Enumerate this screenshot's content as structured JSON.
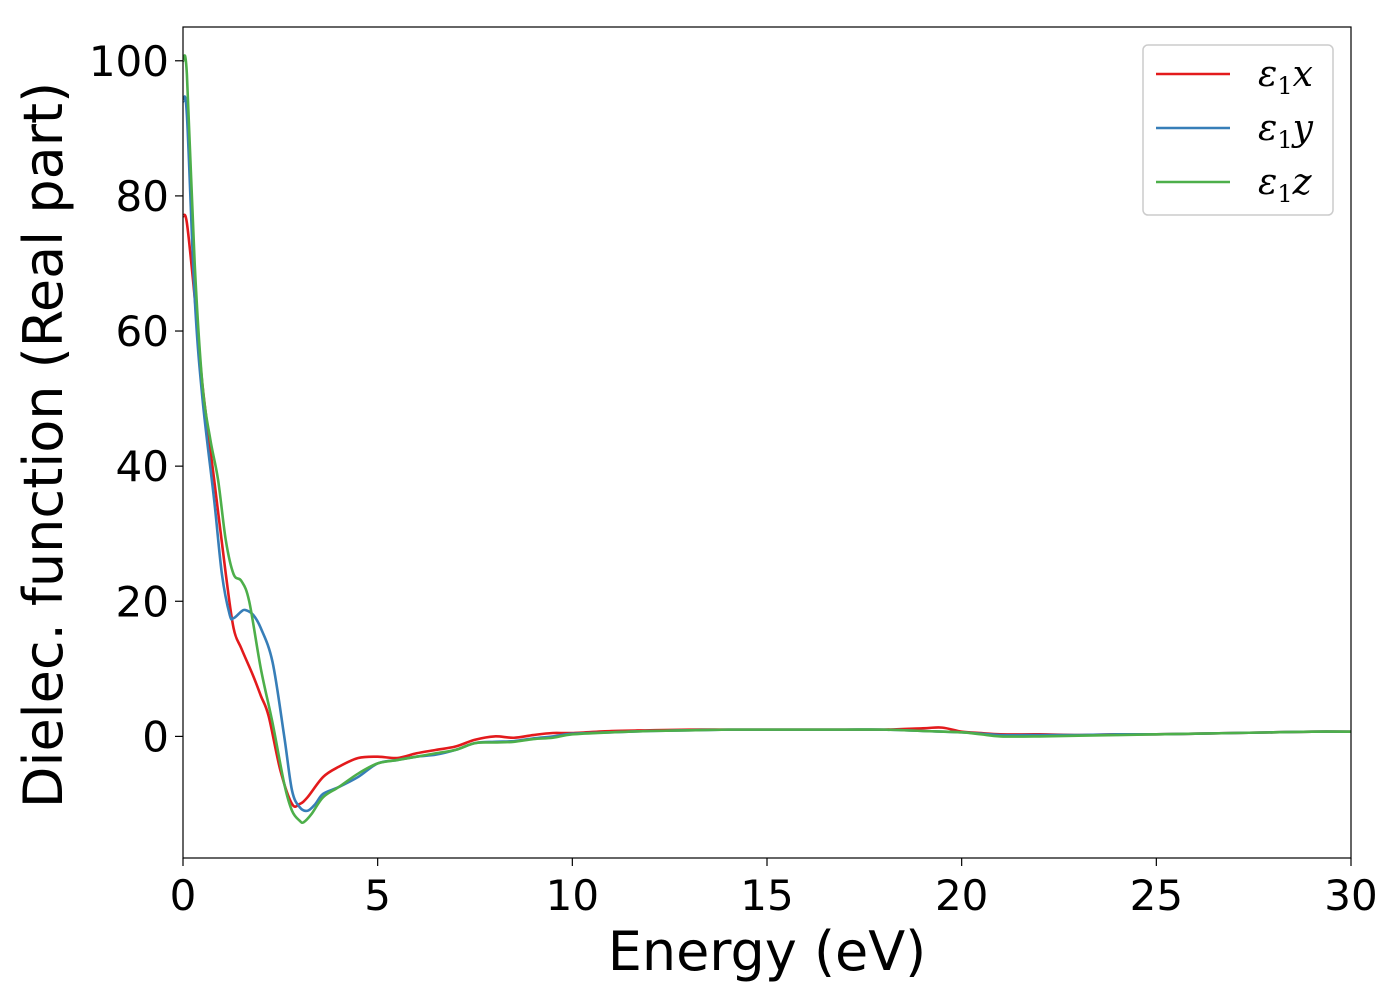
{
  "chart_data": {
    "type": "line",
    "title": "",
    "xlabel": "Energy (eV)",
    "ylabel": "Dielec. function (Real part)",
    "xlim": [
      0,
      30
    ],
    "ylim": [
      -18,
      105
    ],
    "xticks": [
      0,
      5,
      10,
      15,
      20,
      25,
      30
    ],
    "yticks": [
      0,
      20,
      40,
      60,
      80,
      100
    ],
    "xtick_labels": [
      "0",
      "5",
      "10",
      "15",
      "20",
      "25",
      "30"
    ],
    "ytick_labels": [
      "0",
      "20",
      "40",
      "60",
      "80",
      "100"
    ],
    "grid": false,
    "legend_position": "top-right",
    "series": [
      {
        "name": "ε1x",
        "name_parts": {
          "base": "ε",
          "sub": "1",
          "tail": "x"
        },
        "color": "#e31a1c",
        "points": [
          [
            0,
            77
          ],
          [
            0.1,
            76
          ],
          [
            0.3,
            65
          ],
          [
            0.5,
            52
          ],
          [
            0.8,
            38
          ],
          [
            1.1,
            24
          ],
          [
            1.3,
            16
          ],
          [
            1.5,
            13
          ],
          [
            1.8,
            9
          ],
          [
            2.0,
            6
          ],
          [
            2.2,
            3
          ],
          [
            2.5,
            -5
          ],
          [
            2.8,
            -10
          ],
          [
            3.0,
            -10
          ],
          [
            3.2,
            -9
          ],
          [
            3.6,
            -6
          ],
          [
            4.0,
            -4.5
          ],
          [
            4.5,
            -3.2
          ],
          [
            5.0,
            -3
          ],
          [
            5.5,
            -3.2
          ],
          [
            6.0,
            -2.5
          ],
          [
            6.5,
            -2
          ],
          [
            7.0,
            -1.5
          ],
          [
            7.5,
            -0.5
          ],
          [
            8.0,
            0
          ],
          [
            8.5,
            -0.2
          ],
          [
            9.0,
            0.2
          ],
          [
            9.5,
            0.5
          ],
          [
            10,
            0.5
          ],
          [
            11,
            0.8
          ],
          [
            12,
            0.9
          ],
          [
            13,
            1
          ],
          [
            14,
            1
          ],
          [
            15,
            1
          ],
          [
            16,
            1
          ],
          [
            17,
            1
          ],
          [
            18,
            1
          ],
          [
            19,
            1.2
          ],
          [
            19.5,
            1.3
          ],
          [
            20,
            0.7
          ],
          [
            20.5,
            0.5
          ],
          [
            21,
            0.3
          ],
          [
            22,
            0.3
          ],
          [
            23,
            0.2
          ],
          [
            24,
            0.3
          ],
          [
            25,
            0.3
          ],
          [
            26,
            0.4
          ],
          [
            27,
            0.5
          ],
          [
            28,
            0.6
          ],
          [
            29,
            0.7
          ],
          [
            30,
            0.7
          ]
        ]
      },
      {
        "name": "ε1y",
        "name_parts": {
          "base": "ε",
          "sub": "1",
          "tail": "y"
        },
        "color": "#377eb8",
        "points": [
          [
            0,
            94
          ],
          [
            0.1,
            92
          ],
          [
            0.3,
            65
          ],
          [
            0.5,
            50
          ],
          [
            0.8,
            35
          ],
          [
            1.0,
            24
          ],
          [
            1.2,
            18
          ],
          [
            1.3,
            17.5
          ],
          [
            1.5,
            18.5
          ],
          [
            1.6,
            18.7
          ],
          [
            1.8,
            18
          ],
          [
            2.0,
            16
          ],
          [
            2.3,
            11
          ],
          [
            2.6,
            0
          ],
          [
            2.8,
            -8
          ],
          [
            3.0,
            -10.5
          ],
          [
            3.2,
            -11
          ],
          [
            3.4,
            -10
          ],
          [
            3.6,
            -8.5
          ],
          [
            4.0,
            -7.5
          ],
          [
            4.5,
            -6
          ],
          [
            5.0,
            -4
          ],
          [
            5.5,
            -3.5
          ],
          [
            6.0,
            -3
          ],
          [
            6.5,
            -2.7
          ],
          [
            7.0,
            -2
          ],
          [
            7.5,
            -1
          ],
          [
            8.0,
            -0.8
          ],
          [
            8.5,
            -0.7
          ],
          [
            9.0,
            -0.3
          ],
          [
            9.5,
            0
          ],
          [
            10,
            0.4
          ],
          [
            11,
            0.6
          ],
          [
            12,
            0.8
          ],
          [
            13,
            0.9
          ],
          [
            14,
            1
          ],
          [
            15,
            1
          ],
          [
            16,
            1
          ],
          [
            17,
            1
          ],
          [
            18,
            1
          ],
          [
            19,
            0.8
          ],
          [
            20,
            0.6
          ],
          [
            20.5,
            0.4
          ],
          [
            21,
            0.2
          ],
          [
            22,
            0.2
          ],
          [
            23,
            0.2
          ],
          [
            24,
            0.3
          ],
          [
            25,
            0.3
          ],
          [
            26,
            0.4
          ],
          [
            27,
            0.5
          ],
          [
            28,
            0.6
          ],
          [
            29,
            0.7
          ],
          [
            30,
            0.7
          ]
        ]
      },
      {
        "name": "ε1z",
        "name_parts": {
          "base": "ε",
          "sub": "1",
          "tail": "z"
        },
        "color": "#4daf4a",
        "points": [
          [
            0,
            100
          ],
          [
            0.1,
            98
          ],
          [
            0.3,
            70
          ],
          [
            0.5,
            52
          ],
          [
            0.7,
            44
          ],
          [
            0.9,
            38
          ],
          [
            1.1,
            29
          ],
          [
            1.3,
            24
          ],
          [
            1.5,
            23
          ],
          [
            1.7,
            20
          ],
          [
            2.0,
            10
          ],
          [
            2.3,
            2
          ],
          [
            2.6,
            -7
          ],
          [
            2.8,
            -11
          ],
          [
            3.0,
            -12.5
          ],
          [
            3.1,
            -12.7
          ],
          [
            3.3,
            -11.5
          ],
          [
            3.6,
            -9
          ],
          [
            4.0,
            -7.5
          ],
          [
            4.5,
            -5.5
          ],
          [
            5.0,
            -4
          ],
          [
            5.5,
            -3.5
          ],
          [
            6.0,
            -3
          ],
          [
            6.5,
            -2.5
          ],
          [
            7.0,
            -2
          ],
          [
            7.5,
            -1
          ],
          [
            8.0,
            -0.9
          ],
          [
            8.5,
            -0.8
          ],
          [
            9.0,
            -0.4
          ],
          [
            9.5,
            -0.2
          ],
          [
            10,
            0.3
          ],
          [
            11,
            0.6
          ],
          [
            12,
            0.8
          ],
          [
            13,
            0.9
          ],
          [
            14,
            1
          ],
          [
            15,
            1
          ],
          [
            16,
            1
          ],
          [
            17,
            1
          ],
          [
            18,
            1
          ],
          [
            19,
            0.8
          ],
          [
            20,
            0.6
          ],
          [
            20.5,
            0.3
          ],
          [
            21,
            0
          ],
          [
            22,
            0
          ],
          [
            23,
            0.1
          ],
          [
            24,
            0.2
          ],
          [
            25,
            0.3
          ],
          [
            26,
            0.4
          ],
          [
            27,
            0.5
          ],
          [
            28,
            0.6
          ],
          [
            29,
            0.7
          ],
          [
            30,
            0.7
          ]
        ]
      }
    ]
  }
}
